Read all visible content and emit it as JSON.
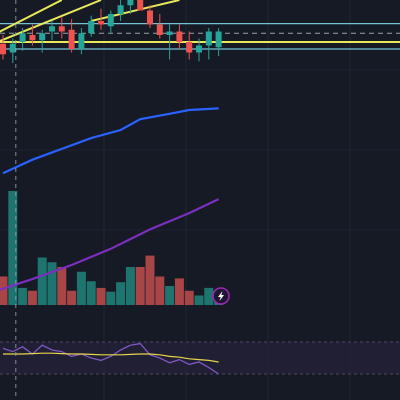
{
  "chart_data": {
    "type": "candlestick",
    "theme": "dark",
    "colors": {
      "background": "#161a25",
      "grid": "#2a2e39",
      "bull": "#26a69a",
      "bear": "#ef5350",
      "bull_volume": "#1f7f78",
      "bear_volume": "#b84a4a",
      "ma_blue": "#2962ff",
      "ma_purple": "#7b2fbe",
      "trend_yellow": "#e8e85a",
      "level_cyan": "#7fd4e6",
      "rsi_line": "#7e57c2",
      "rsi_signal": "#e8d44d",
      "rsi_band": "#2a2540",
      "crosshair": "#8fa3b0",
      "alert_icon": "#9c27b0"
    },
    "series": [
      {
        "name": "price",
        "candles": [
          {
            "o": 75,
            "h": 80,
            "l": 66,
            "c": 69
          },
          {
            "o": 70,
            "h": 78,
            "l": 64,
            "c": 75
          },
          {
            "o": 76,
            "h": 84,
            "l": 71,
            "c": 81
          },
          {
            "o": 80,
            "h": 86,
            "l": 74,
            "c": 77
          },
          {
            "o": 77,
            "h": 83,
            "l": 70,
            "c": 81
          },
          {
            "o": 82,
            "h": 88,
            "l": 77,
            "c": 85
          },
          {
            "o": 85,
            "h": 90,
            "l": 78,
            "c": 82
          },
          {
            "o": 83,
            "h": 89,
            "l": 70,
            "c": 72
          },
          {
            "o": 72,
            "h": 84,
            "l": 69,
            "c": 81
          },
          {
            "o": 81,
            "h": 91,
            "l": 79,
            "c": 88
          },
          {
            "o": 88,
            "h": 95,
            "l": 83,
            "c": 86
          },
          {
            "o": 85,
            "h": 94,
            "l": 81,
            "c": 92
          },
          {
            "o": 92,
            "h": 100,
            "l": 88,
            "c": 97
          },
          {
            "o": 97,
            "h": 104,
            "l": 92,
            "c": 101
          },
          {
            "o": 101,
            "h": 106,
            "l": 94,
            "c": 94
          },
          {
            "o": 94,
            "h": 97,
            "l": 84,
            "c": 86
          },
          {
            "o": 86,
            "h": 92,
            "l": 78,
            "c": 80
          },
          {
            "o": 80,
            "h": 86,
            "l": 66,
            "c": 82
          },
          {
            "o": 82,
            "h": 86,
            "l": 72,
            "c": 76
          },
          {
            "o": 76,
            "h": 82,
            "l": 66,
            "c": 70
          },
          {
            "o": 70,
            "h": 78,
            "l": 65,
            "c": 74
          },
          {
            "o": 74,
            "h": 84,
            "l": 66,
            "c": 82
          },
          {
            "o": 73,
            "h": 84,
            "l": 68,
            "c": 82
          }
        ],
        "volume": [
          30,
          120,
          18,
          15,
          50,
          45,
          40,
          15,
          35,
          25,
          18,
          14,
          24,
          40,
          40,
          52,
          30,
          20,
          28,
          15,
          10,
          18,
          12
        ]
      }
    ],
    "indicators": {
      "ma_blue": [
        [
          0,
          42
        ],
        [
          3,
          44.5
        ],
        [
          6,
          46.5
        ],
        [
          9,
          48.5
        ],
        [
          12,
          50
        ],
        [
          14,
          52
        ],
        [
          17,
          53
        ],
        [
          19,
          53.7
        ],
        [
          22,
          54
        ]
      ],
      "ma_purple": [
        [
          -1,
          10
        ],
        [
          3,
          11.2
        ],
        [
          7,
          12.5
        ],
        [
          11,
          14
        ],
        [
          15,
          15.8
        ],
        [
          19,
          17.3
        ],
        [
          22,
          18.6
        ]
      ],
      "trend_lines": [
        [
          [
            -1,
            75
          ],
          [
            10,
            100
          ]
        ],
        [
          [
            -1,
            80
          ],
          [
            6,
            100
          ]
        ],
        [
          [
            9,
            88
          ],
          [
            18,
            100
          ]
        ]
      ],
      "horizontal_levels": [
        72,
        76,
        81,
        86.5
      ],
      "rsi": [
        62,
        58,
        64,
        55,
        66,
        60,
        58,
        52,
        55,
        50,
        47,
        52,
        60,
        66,
        68,
        54,
        50,
        44,
        48,
        42,
        45,
        38,
        30
      ],
      "rsi_signal": [
        55,
        55,
        55,
        55.5,
        56,
        56,
        55.5,
        55,
        55,
        54.5,
        54,
        54,
        54,
        54.5,
        55,
        55,
        54,
        52,
        51,
        49,
        48,
        47,
        45
      ]
    },
    "crosshair": {
      "candle_index": 1
    },
    "price_ylim": [
      0,
      100
    ],
    "volume_ylim": [
      0,
      200
    ],
    "rsi_ylim": [
      0,
      100
    ],
    "grid": true,
    "alert_icon": "lightning-bolt-icon"
  }
}
